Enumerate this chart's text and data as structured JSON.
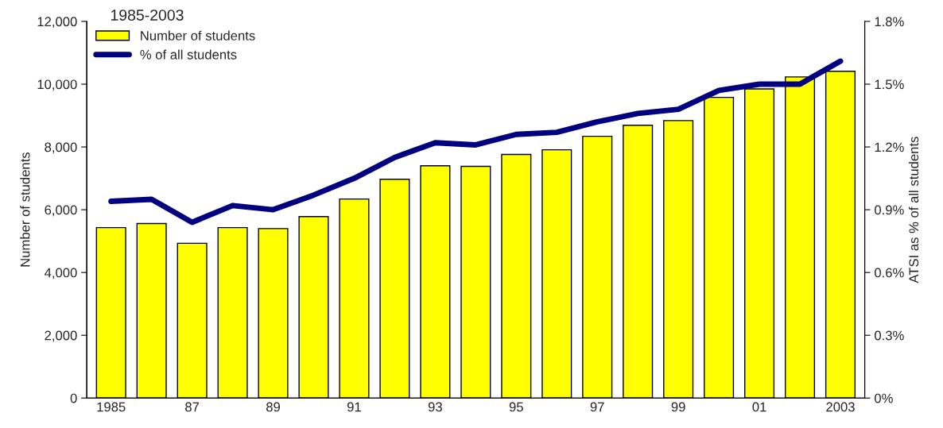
{
  "chart_data": {
    "type": "bar",
    "title": "1985-2003",
    "categories": [
      "1985",
      null,
      "87",
      null,
      "89",
      null,
      "91",
      null,
      "93",
      null,
      "95",
      null,
      "97",
      null,
      "99",
      null,
      "01",
      null,
      "2003"
    ],
    "series": [
      {
        "name": "Number of students",
        "color": "#ffff00",
        "values": [
          5430,
          5560,
          4930,
          5430,
          5400,
          5780,
          6340,
          6970,
          7400,
          7380,
          7760,
          7910,
          8340,
          8690,
          8840,
          9580,
          9850,
          10230,
          10410
        ]
      },
      {
        "name": "% of all students",
        "type": "line",
        "axis": "y2",
        "color": "#000080",
        "values": [
          0.94,
          0.95,
          0.84,
          0.92,
          0.9,
          0.97,
          1.05,
          1.15,
          1.22,
          1.21,
          1.26,
          1.27,
          1.32,
          1.36,
          1.38,
          1.47,
          1.5,
          1.5,
          1.61
        ]
      }
    ],
    "ylabel": "Number of students",
    "y2label": "ATSI as % of all students",
    "ylim": [
      0,
      12000
    ],
    "yticks": [
      {
        "value": 0,
        "label": "0"
      },
      {
        "value": 2000,
        "label": "2,000"
      },
      {
        "value": 4000,
        "label": "4,000"
      },
      {
        "value": 6000,
        "label": "6,000"
      },
      {
        "value": 8000,
        "label": "8,000"
      },
      {
        "value": 10000,
        "label": "10,000"
      },
      {
        "value": 12000,
        "label": "12,000"
      }
    ],
    "y2lim": [
      0,
      1.8
    ],
    "y2ticks": [
      {
        "value": 0,
        "label": "0%"
      },
      {
        "value": 0.3,
        "label": "0.3%"
      },
      {
        "value": 0.6,
        "label": "0.6%"
      },
      {
        "value": 0.9,
        "label": "0.9%"
      },
      {
        "value": 1.2,
        "label": "1.2%"
      },
      {
        "value": 1.5,
        "label": "1.5%"
      },
      {
        "value": 1.8,
        "label": "1.8%"
      }
    ],
    "legend": "top left",
    "grid": false
  }
}
